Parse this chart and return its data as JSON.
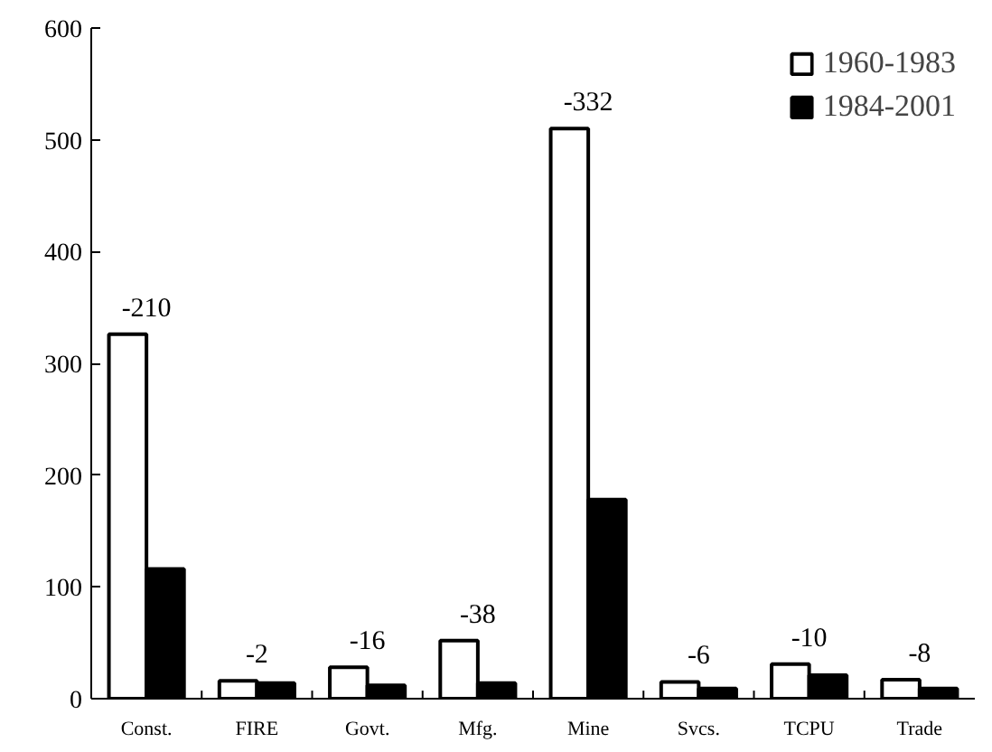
{
  "chart_data": {
    "type": "bar",
    "categories": [
      "Const.",
      "FIRE",
      "Govt.",
      "Mfg.",
      "Mine",
      "Svcs.",
      "TCPU",
      "Trade"
    ],
    "series": [
      {
        "name": "1960-1983",
        "color": "#ffffff",
        "values": [
          326,
          16,
          28,
          52,
          510,
          15,
          31,
          17
        ]
      },
      {
        "name": "1984-2001",
        "color": "#000000",
        "values": [
          116,
          14,
          12,
          14,
          178,
          9,
          21,
          9
        ]
      }
    ],
    "ylim": [
      0,
      600
    ],
    "yticks": [
      0,
      100,
      200,
      300,
      400,
      500,
      600
    ],
    "grid": false,
    "legend": "top right",
    "annotations": [
      {
        "text": "-210",
        "x": "Const.",
        "y": 326
      },
      {
        "text": "-2",
        "x": "FIRE",
        "y": 16
      },
      {
        "text": "-16",
        "x": "Govt.",
        "y": 28
      },
      {
        "text": "-38",
        "x": "Mfg.",
        "y": 52
      },
      {
        "text": "-332",
        "x": "Mine",
        "y": 510
      },
      {
        "text": "-6",
        "x": "Svcs.",
        "y": 15
      },
      {
        "text": "-10",
        "x": "TCPU",
        "y": 31
      },
      {
        "text": "-8",
        "x": "Trade",
        "y": 17
      }
    ]
  }
}
